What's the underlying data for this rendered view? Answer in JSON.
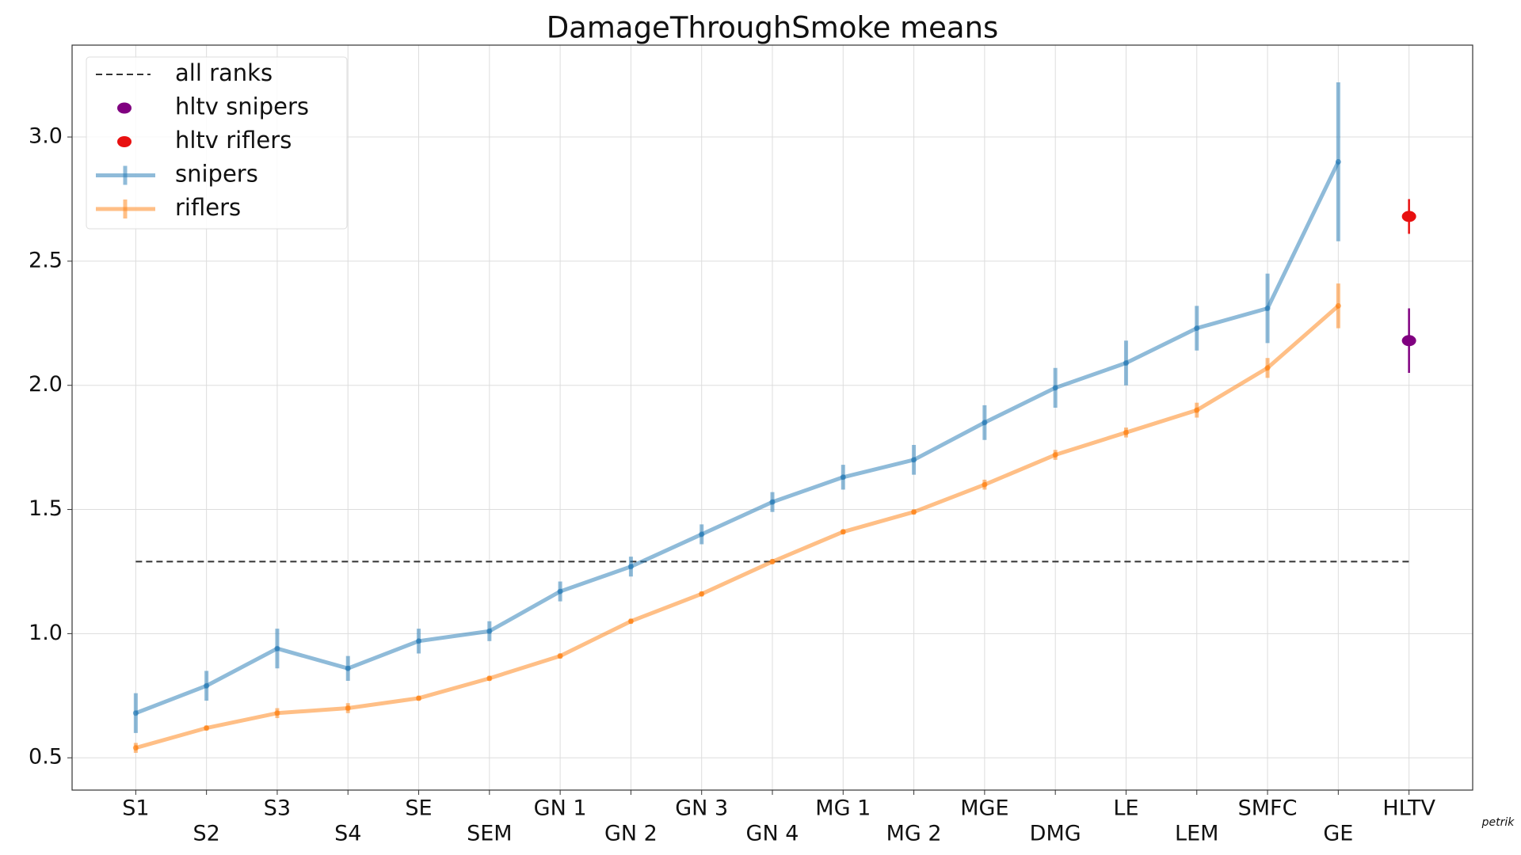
{
  "chart_data": {
    "type": "line",
    "title": "DamageThroughSmoke means",
    "categories": [
      "S1",
      "S2",
      "S3",
      "S4",
      "SE",
      "SEM",
      "GN 1",
      "GN 2",
      "GN 3",
      "GN 4",
      "MG 1",
      "MG 2",
      "MGE",
      "DMG",
      "LE",
      "LEM",
      "SMFC",
      "GE",
      "HLTV"
    ],
    "ylim": [
      0.37,
      3.37
    ],
    "yticks": [
      0.5,
      {
        "value": 1,
        "label": "1.0"
      },
      1.5,
      {
        "value": 2,
        "label": "2.0"
      },
      2.5,
      {
        "value": 3,
        "label": "3.0"
      }
    ],
    "grid": true,
    "legend": "upper left",
    "reference_line": {
      "name": "all ranks",
      "value": 1.29,
      "color": "#333333",
      "style": "dashed"
    },
    "series": [
      {
        "name": "hltv snipers",
        "kind": "scatter",
        "color": "#800080",
        "values": [
          null,
          null,
          null,
          null,
          null,
          null,
          null,
          null,
          null,
          null,
          null,
          null,
          null,
          null,
          null,
          null,
          null,
          null,
          2.18
        ],
        "errors": [
          null,
          null,
          null,
          null,
          null,
          null,
          null,
          null,
          null,
          null,
          null,
          null,
          null,
          null,
          null,
          null,
          null,
          null,
          0.13
        ]
      },
      {
        "name": "hltv riflers",
        "kind": "scatter",
        "color": "#e81010",
        "values": [
          null,
          null,
          null,
          null,
          null,
          null,
          null,
          null,
          null,
          null,
          null,
          null,
          null,
          null,
          null,
          null,
          null,
          null,
          2.68
        ],
        "errors": [
          null,
          null,
          null,
          null,
          null,
          null,
          null,
          null,
          null,
          null,
          null,
          null,
          null,
          null,
          null,
          null,
          null,
          null,
          0.07
        ]
      },
      {
        "name": "snipers",
        "kind": "line",
        "color": "#1f77b4",
        "values": [
          0.68,
          0.79,
          0.94,
          0.86,
          0.97,
          1.01,
          1.17,
          1.27,
          1.4,
          1.53,
          1.63,
          1.7,
          1.85,
          1.99,
          2.09,
          2.23,
          2.31,
          2.9,
          null
        ],
        "errors": [
          0.08,
          0.06,
          0.08,
          0.05,
          0.05,
          0.04,
          0.04,
          0.04,
          0.04,
          0.04,
          0.05,
          0.06,
          0.07,
          0.08,
          0.09,
          0.09,
          0.14,
          0.32,
          null
        ]
      },
      {
        "name": "riflers",
        "kind": "line",
        "color": "#ff7f0e",
        "values": [
          0.54,
          0.62,
          0.68,
          0.7,
          0.74,
          0.82,
          0.91,
          1.05,
          1.16,
          1.29,
          1.41,
          1.49,
          1.6,
          1.72,
          1.81,
          1.9,
          2.07,
          2.32,
          null
        ],
        "errors": [
          0.02,
          0.01,
          0.02,
          0.02,
          0.01,
          0.01,
          0.01,
          0.01,
          0.01,
          0.01,
          0.01,
          0.01,
          0.02,
          0.02,
          0.02,
          0.03,
          0.04,
          0.09,
          null
        ]
      }
    ],
    "signature": "petrik"
  }
}
